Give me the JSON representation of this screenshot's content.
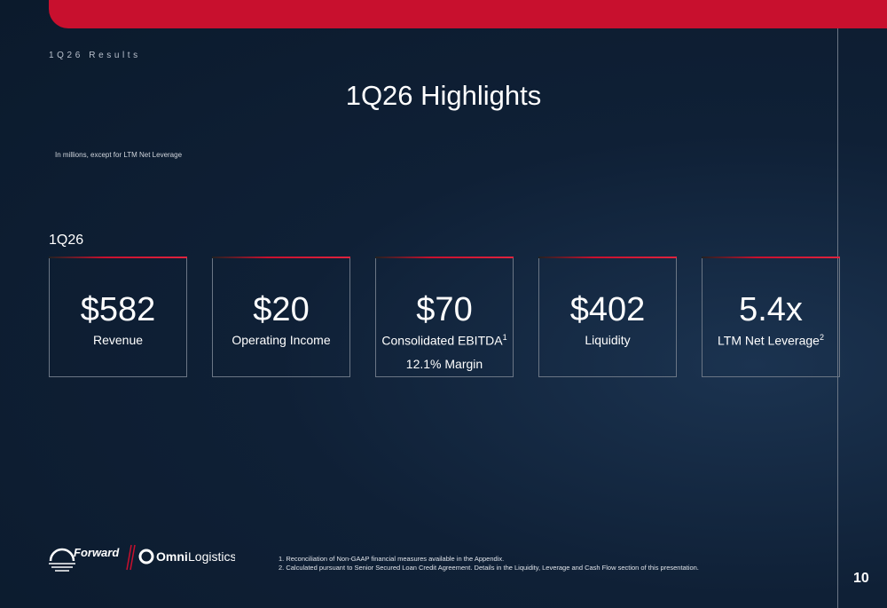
{
  "header": {
    "section": "1Q26 Results",
    "title": "1Q26 Highlights",
    "note": "In millions, except for LTM Net Leverage"
  },
  "period": "1Q26",
  "cards": [
    {
      "value": "$582",
      "label": "Revenue"
    },
    {
      "value": "$20",
      "label": "Operating Income"
    },
    {
      "value": "$70",
      "label": "Consolidated EBITDA",
      "sup": "1",
      "sub": "12.1% Margin"
    },
    {
      "value": "$402",
      "label": "Liquidity"
    },
    {
      "value": "5.4x",
      "label": "LTM Net Leverage",
      "sup": "2"
    }
  ],
  "logos": {
    "forward": "Forward",
    "omni": "Omni",
    "logistics": "Logistics"
  },
  "footnotes": [
    "1.  Reconciliation of Non-GAAP financial measures available in the Appendix.",
    "2.  Calculated pursuant to Senior Secured Loan Credit Agreement. Details in the Liquidity, Leverage and Cash Flow section of this presentation."
  ],
  "page_number": "10"
}
